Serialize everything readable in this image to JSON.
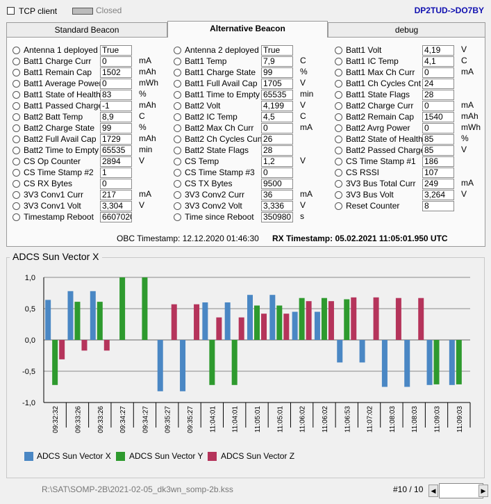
{
  "header": {
    "tcp_client_label": "TCP client",
    "status_label": "Closed",
    "callsign": "DP2TUD->DO7BY"
  },
  "tabs": [
    {
      "label": "Standard Beacon",
      "active": false
    },
    {
      "label": "Alternative Beacon",
      "active": true
    },
    {
      "label": "debug",
      "active": false
    }
  ],
  "columns": [
    [
      {
        "label": "Antenna 1 deployed",
        "value": "True",
        "unit": ""
      },
      {
        "label": "Batt1 Charge Curr",
        "value": "0",
        "unit": "mA"
      },
      {
        "label": "Batt1 Remain Cap",
        "value": "1502",
        "unit": "mAh"
      },
      {
        "label": "Batt1 Average Power",
        "value": "0",
        "unit": "mWh"
      },
      {
        "label": "Batt1 State of Health",
        "value": "83",
        "unit": "%"
      },
      {
        "label": "Batt1 Passed Charge",
        "value": "-1",
        "unit": "mAh"
      },
      {
        "label": "Batt2 Batt Temp",
        "value": "8,9",
        "unit": "C"
      },
      {
        "label": "Batt2 Charge State",
        "value": "99",
        "unit": "%"
      },
      {
        "label": "Batt2 Full Avail Cap",
        "value": "1729",
        "unit": "mAh"
      },
      {
        "label": "Batt2 Time to Empty",
        "value": "65535",
        "unit": "min"
      },
      {
        "label": "CS Op Counter",
        "value": "2894",
        "unit": "V"
      },
      {
        "label": "CS Time Stamp #2",
        "value": "1",
        "unit": ""
      },
      {
        "label": "CS RX Bytes",
        "value": "0",
        "unit": ""
      },
      {
        "label": "3V3 Conv1 Curr",
        "value": "217",
        "unit": "mA"
      },
      {
        "label": "3V3 Conv1 Volt",
        "value": "3,304",
        "unit": "V"
      },
      {
        "label": "Timestamp Reboot",
        "value": "6607020",
        "unit": ""
      }
    ],
    [
      {
        "label": "Antenna 2 deployed",
        "value": "True",
        "unit": ""
      },
      {
        "label": "Batt1 Temp",
        "value": "7,9",
        "unit": "C"
      },
      {
        "label": "Batt1 Charge State",
        "value": "99",
        "unit": "%"
      },
      {
        "label": "Batt1 Full Avail Cap",
        "value": "1705",
        "unit": "V"
      },
      {
        "label": "Batt1 Time to Empty",
        "value": "65535",
        "unit": "min"
      },
      {
        "label": "Batt2 Volt",
        "value": "4,199",
        "unit": "V"
      },
      {
        "label": "Batt2 IC Temp",
        "value": "4,5",
        "unit": "C"
      },
      {
        "label": "Batt2 Max Ch Curr",
        "value": "0",
        "unit": "mA"
      },
      {
        "label": "Batt2 Ch Cycles Cunt",
        "value": "26",
        "unit": ""
      },
      {
        "label": "Batt2 State Flags",
        "value": "28",
        "unit": ""
      },
      {
        "label": "CS Temp",
        "value": "1,2",
        "unit": "V"
      },
      {
        "label": "CS Time Stamp #3",
        "value": "0",
        "unit": ""
      },
      {
        "label": "CS TX Bytes",
        "value": "9500",
        "unit": ""
      },
      {
        "label": "3V3 Conv2 Curr",
        "value": "36",
        "unit": "mA"
      },
      {
        "label": "3V3 Conv2 Volt",
        "value": "3,336",
        "unit": "V"
      },
      {
        "label": "Time since Reboot",
        "value": "350980",
        "unit": "s"
      }
    ],
    [
      {
        "label": "Batt1 Volt",
        "value": "4,19",
        "unit": "V"
      },
      {
        "label": "Batt1 IC Temp",
        "value": "4,1",
        "unit": "C"
      },
      {
        "label": "Batt1 Max Ch Curr",
        "value": "0",
        "unit": "mA"
      },
      {
        "label": "Batt1 Ch Cycles Cnt",
        "value": "24",
        "unit": ""
      },
      {
        "label": "Batt1 State Flags",
        "value": "28",
        "unit": ""
      },
      {
        "label": "Batt2 Charge Curr",
        "value": "0",
        "unit": "mA"
      },
      {
        "label": "Batt2 Remain Cap",
        "value": "1540",
        "unit": "mAh"
      },
      {
        "label": "Batt2 Avrg Power",
        "value": "0",
        "unit": "mWh"
      },
      {
        "label": "Batt2 State of Health",
        "value": "85",
        "unit": "%"
      },
      {
        "label": "Batt2 Passed Charge",
        "value": "85",
        "unit": "V"
      },
      {
        "label": "CS Time Stamp #1",
        "value": "186",
        "unit": ""
      },
      {
        "label": "CS RSSI",
        "value": "107",
        "unit": ""
      },
      {
        "label": "3V3 Bus Total Curr",
        "value": "249",
        "unit": "mA"
      },
      {
        "label": "3V3 Bus Volt",
        "value": "3,264",
        "unit": "V"
      },
      {
        "label": "Reset Counter",
        "value": "8",
        "unit": ""
      }
    ]
  ],
  "timestamps": {
    "obc": "OBC Timestamp: 12.12.2020 01:46:30",
    "rx": "RX Timestamp: 05.02.2021 11:05:01.950 UTC"
  },
  "chart_data": {
    "type": "bar",
    "title": "ADCS Sun Vector X",
    "ylim": [
      -1.0,
      1.0
    ],
    "yticks": [
      "1,0",
      "0,5",
      "0,0",
      "-0,5",
      "-1,0"
    ],
    "ytick_values": [
      1.0,
      0.5,
      0.0,
      -0.5,
      -1.0
    ],
    "grid": true,
    "legend_position": "bottom-left",
    "categories": [
      "09:32:32",
      "09:33:26",
      "09:33:26",
      "09:34:27",
      "09:34:27",
      "09:35:27",
      "09:35:27",
      "11:04:01",
      "11:04:01",
      "11:05:01",
      "11:05:01",
      "11:06:02",
      "11:06:02",
      "11:06:53",
      "11:07:02",
      "11:08:03",
      "11:08:03",
      "11:09:03",
      "11:09:03"
    ],
    "series": [
      {
        "name": "ADCS Sun Vector X",
        "color": "#4a87c4",
        "values": [
          0.64,
          0.78,
          0.78,
          0.0,
          0.0,
          -0.82,
          -0.82,
          0.6,
          0.6,
          0.72,
          0.72,
          0.45,
          0.45,
          -0.36,
          -0.36,
          -0.75,
          -0.75,
          -0.72,
          -0.72
        ]
      },
      {
        "name": "ADCS Sun Vector Y",
        "color": "#2e9a2e",
        "values": [
          -0.72,
          0.61,
          0.61,
          1.0,
          1.0,
          0.0,
          0.0,
          -0.72,
          -0.72,
          0.55,
          0.55,
          0.67,
          0.67,
          0.65,
          0.0,
          0.0,
          0.0,
          -0.71,
          -0.71
        ]
      },
      {
        "name": "ADCS Sun Vector Z",
        "color": "#b5345b",
        "values": [
          -0.31,
          -0.17,
          -0.17,
          0.0,
          0.0,
          0.57,
          0.57,
          0.36,
          0.36,
          0.42,
          0.42,
          0.62,
          0.62,
          0.68,
          0.68,
          0.67,
          0.67,
          0.0,
          0.0
        ]
      }
    ]
  },
  "footer": {
    "file_path": "R:\\SAT\\SOMP-2B\\2021-02-05_dk3wn_somp-2b.kss",
    "record_counter": "#10 / 10"
  },
  "colors": {
    "callsign": "#1010b0",
    "gridline": "#8a8a8a",
    "axis": "#000000"
  }
}
